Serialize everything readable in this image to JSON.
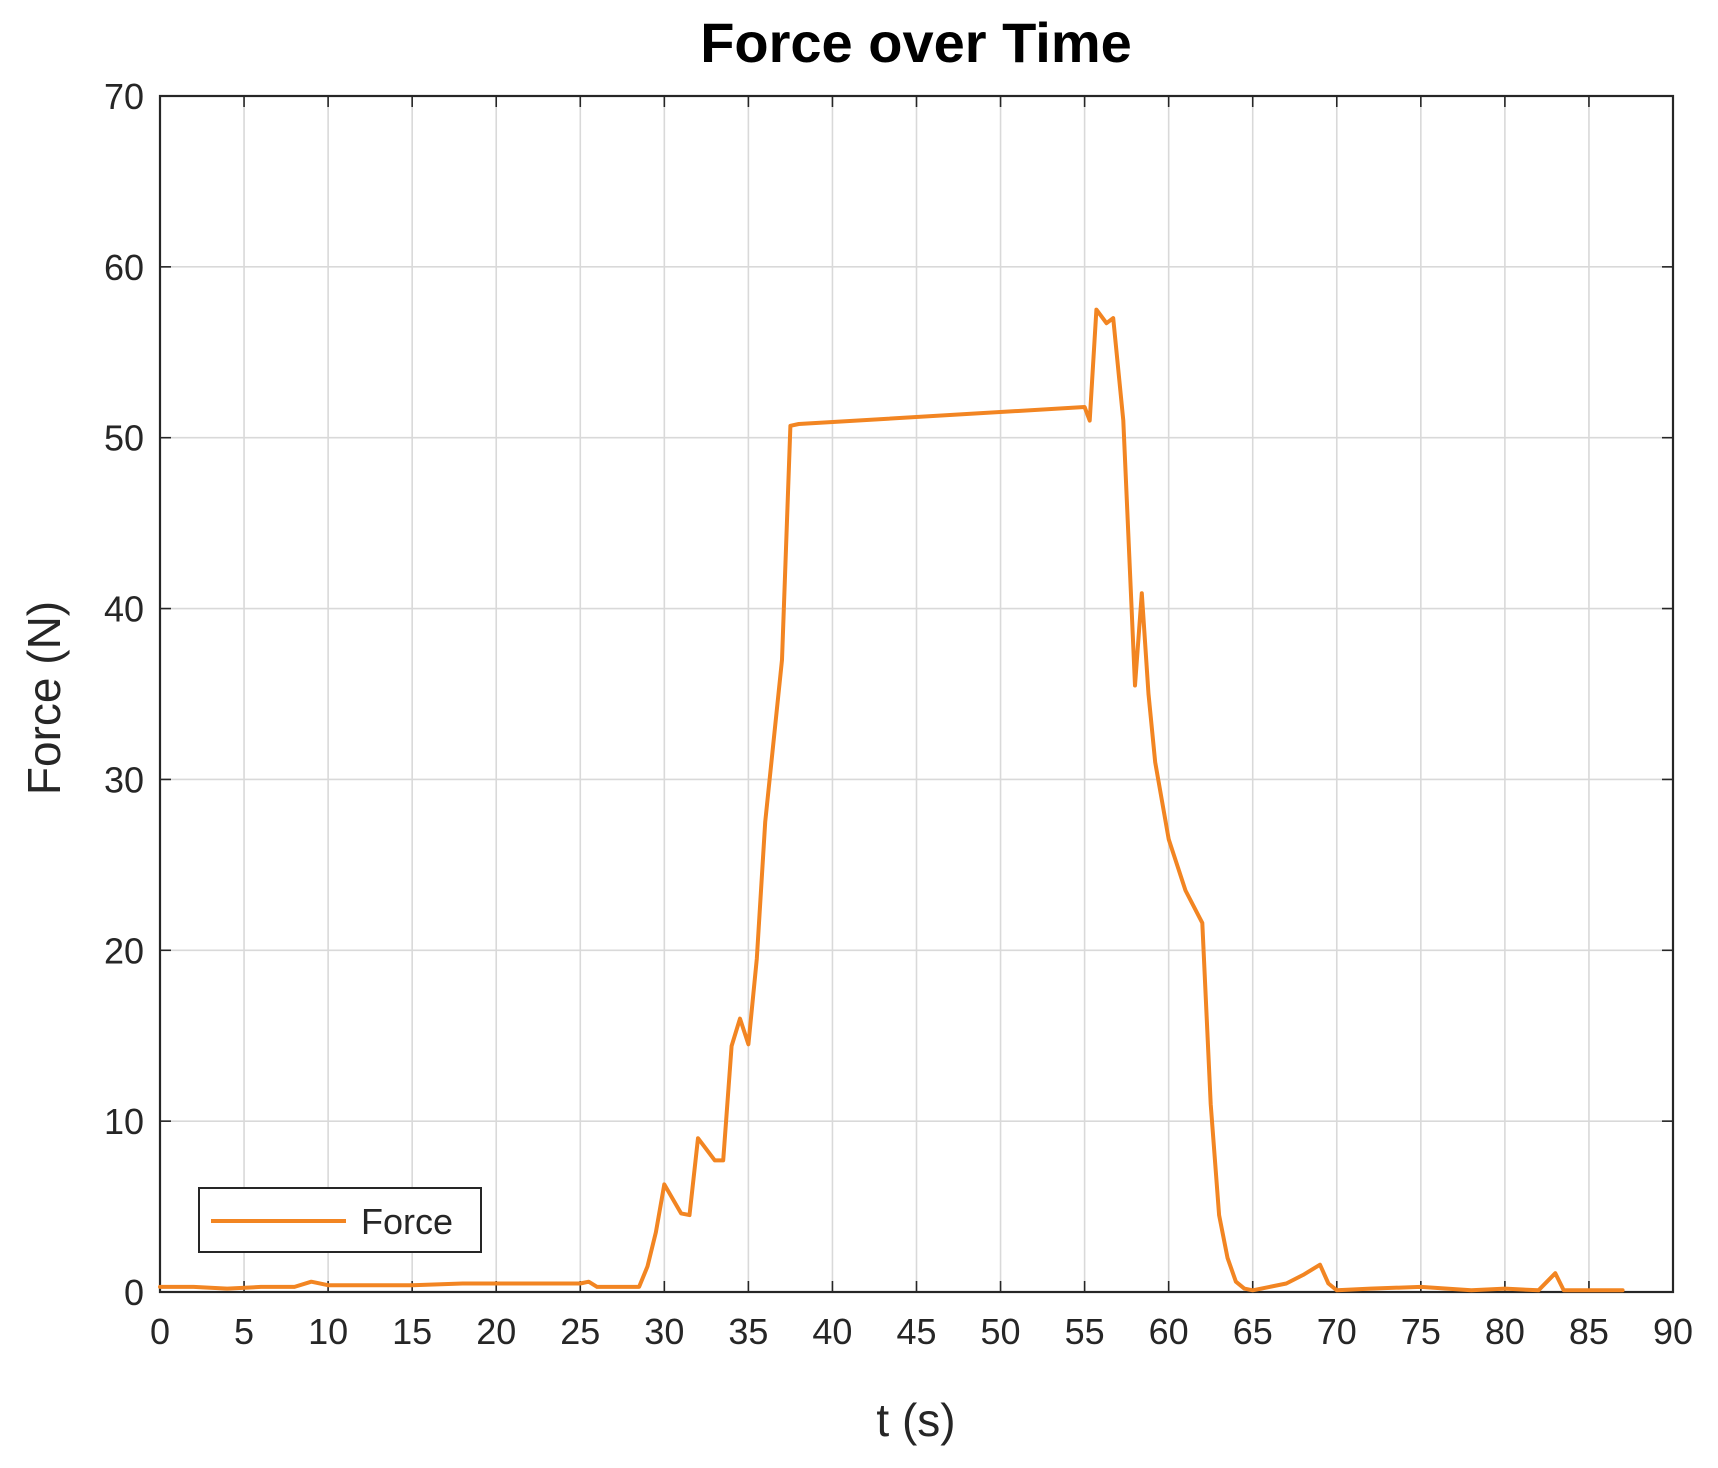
{
  "chart_data": {
    "type": "line",
    "title": "Force over Time",
    "xlabel": "t (s)",
    "ylabel": "Force (N)",
    "xlim": [
      0,
      90
    ],
    "ylim": [
      0,
      70
    ],
    "xticks": [
      0,
      5,
      10,
      15,
      20,
      25,
      30,
      35,
      40,
      45,
      50,
      55,
      60,
      65,
      70,
      75,
      80,
      85,
      90
    ],
    "yticks": [
      0,
      10,
      20,
      30,
      40,
      50,
      60,
      70
    ],
    "grid": true,
    "legend": {
      "location": "bottom-left",
      "entries": [
        "Force"
      ]
    },
    "series": [
      {
        "name": "Force",
        "color": "#F28522",
        "x": [
          0,
          2,
          4,
          6,
          8,
          9,
          10,
          12,
          15,
          18,
          20,
          22,
          25,
          25.5,
          26,
          27,
          28.5,
          29,
          29.5,
          30,
          31,
          31.5,
          32,
          33,
          33.5,
          34,
          34.5,
          35,
          35.5,
          36,
          37,
          37.5,
          38,
          55,
          55.3,
          55.7,
          56.3,
          56.7,
          57.3,
          58,
          58.4,
          58.8,
          59.2,
          60,
          61,
          62,
          62.5,
          63,
          63.5,
          64,
          64.5,
          65,
          66,
          67,
          68,
          69,
          69.5,
          70,
          72,
          75,
          78,
          80,
          82,
          83,
          83.5,
          84,
          86,
          87
        ],
        "y": [
          0.3,
          0.3,
          0.2,
          0.3,
          0.3,
          0.6,
          0.4,
          0.4,
          0.4,
          0.5,
          0.5,
          0.5,
          0.5,
          0.6,
          0.3,
          0.3,
          0.3,
          1.5,
          3.5,
          6.3,
          4.6,
          4.5,
          9.0,
          7.7,
          7.7,
          14.4,
          16.0,
          14.5,
          19.5,
          27.5,
          37.0,
          50.7,
          50.8,
          51.8,
          51.0,
          57.5,
          56.7,
          57.0,
          51.0,
          35.5,
          40.9,
          35.0,
          31.0,
          26.5,
          23.5,
          21.6,
          11.0,
          4.5,
          2.0,
          0.6,
          0.2,
          0.1,
          0.3,
          0.5,
          1.0,
          1.6,
          0.5,
          0.1,
          0.2,
          0.3,
          0.1,
          0.2,
          0.1,
          1.1,
          0.1,
          0.1,
          0.1,
          0.1
        ]
      }
    ]
  }
}
